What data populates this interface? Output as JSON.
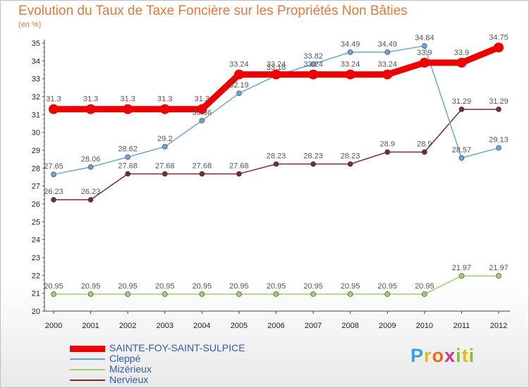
{
  "chart_data": {
    "type": "line",
    "title": "Evolution du Taux de Taxe Foncière sur les Propriétés Non Bâties",
    "subtitle": "(en %)",
    "x": [
      "2000",
      "2001",
      "2002",
      "2003",
      "2004",
      "2005",
      "2006",
      "2007",
      "2008",
      "2009",
      "2010",
      "2011",
      "2012"
    ],
    "y_ticks": [
      "20",
      "21",
      "22",
      "23",
      "24",
      "25",
      "26",
      "27",
      "28",
      "29",
      "30",
      "31",
      "32",
      "33",
      "34",
      "35"
    ],
    "ylim": [
      20,
      35
    ],
    "grid": false,
    "legend_position": "bottom-left",
    "series": [
      {
        "name": "SAINTE-FOY-SAINT-SULPICE",
        "color": "#ee0000",
        "values": [
          31.3,
          31.3,
          31.3,
          31.3,
          31.3,
          33.24,
          33.24,
          33.24,
          33.24,
          33.24,
          33.9,
          33.9,
          34.75
        ],
        "labels": [
          "31.3",
          "31.3",
          "31.3",
          "31.3",
          "31.3",
          "33.24",
          "33.24",
          "33.24",
          "33.24",
          "33.24",
          "33.9",
          "33.9",
          "34.75"
        ]
      },
      {
        "name": "Cleppé",
        "color": "#6fa5d4",
        "values": [
          27.65,
          28.06,
          28.62,
          29.2,
          30.66,
          32.19,
          33.18,
          33.82,
          34.49,
          34.49,
          34.84,
          28.57,
          29.13
        ],
        "labels": [
          "27.65",
          "28.06",
          "28.62",
          "29.2",
          "30.66",
          "32.19",
          "33.18",
          "33.82",
          "34.49",
          "34.49",
          "34.84",
          "28.57",
          "29.13"
        ]
      },
      {
        "name": "Mizérieux",
        "color": "#99d26e",
        "values": [
          20.95,
          20.95,
          20.95,
          20.95,
          20.95,
          20.95,
          20.95,
          20.95,
          20.95,
          20.95,
          20.95,
          21.97,
          21.97
        ],
        "labels": [
          "20.95",
          "20.95",
          "20.95",
          "20.95",
          "20.95",
          "20.95",
          "20.95",
          "20.95",
          "20.95",
          "20.95",
          "20.95",
          "21.97",
          "21.97"
        ]
      },
      {
        "name": "Nervieux",
        "color": "#7a2b2b",
        "values": [
          26.23,
          26.23,
          27.68,
          27.68,
          27.68,
          27.68,
          28.23,
          28.23,
          28.23,
          28.9,
          28.9,
          31.29,
          31.29
        ],
        "labels": [
          "26.23",
          "26.23",
          "27.68",
          "27.68",
          "27.68",
          "27.68",
          "28.23",
          "28.23",
          "28.23",
          "28.9",
          "28.9",
          "31.29",
          "31.29"
        ]
      }
    ]
  },
  "logo": {
    "letters": [
      "P",
      "r",
      "o",
      "x",
      "i",
      "t",
      "i"
    ],
    "colors": [
      "#3aa0dd",
      "#e8b81a",
      "#e86a1a",
      "#d6338a",
      "#8cbf2a",
      "#e8b81a",
      "#8cbf2a"
    ]
  }
}
